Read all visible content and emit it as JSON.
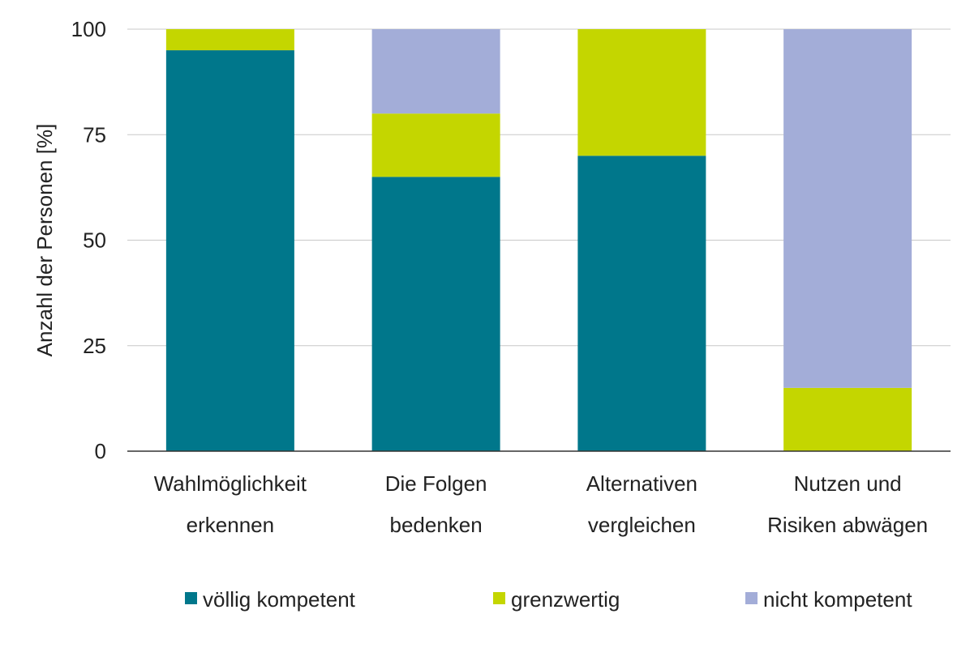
{
  "chart_data": {
    "type": "bar",
    "stacked": true,
    "ylabel": "Anzahl der Personen [%]",
    "ylim": [
      0,
      100
    ],
    "yticks": [
      0,
      25,
      50,
      75,
      100
    ],
    "grid": true,
    "legend_position": "bottom",
    "categories": [
      [
        "Wahlmöglichkeit",
        "erkennen"
      ],
      [
        "Die Folgen",
        "bedenken"
      ],
      [
        "Alternativen",
        "vergleichen"
      ],
      [
        "Nutzen und",
        "Risiken abwägen"
      ]
    ],
    "series": [
      {
        "name": "völlig kompetent",
        "color": "#00778b",
        "values": [
          95,
          65,
          70,
          0
        ]
      },
      {
        "name": "grenzwertig",
        "color": "#c4d600",
        "values": [
          5,
          15,
          30,
          15
        ]
      },
      {
        "name": "nicht kompetent",
        "color": "#a3add8",
        "values": [
          0,
          20,
          0,
          85
        ]
      }
    ]
  }
}
